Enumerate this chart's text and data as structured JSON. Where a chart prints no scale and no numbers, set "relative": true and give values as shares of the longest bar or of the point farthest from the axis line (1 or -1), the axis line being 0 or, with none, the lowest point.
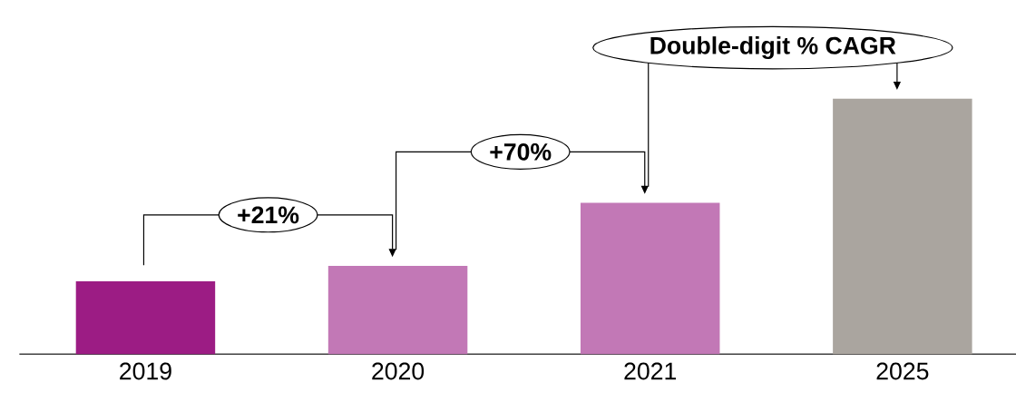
{
  "chart_data": {
    "type": "bar",
    "relative": true,
    "categories": [
      "2019",
      "2020",
      "2021",
      "2025"
    ],
    "values": [
      0.285,
      0.345,
      0.592,
      1
    ],
    "colors": [
      "#9c1c84",
      "#c278b6",
      "#c278b6",
      "#aaa59f"
    ],
    "annotations": [
      "+21%",
      "+70%",
      "Double-digit % CAGR"
    ]
  }
}
